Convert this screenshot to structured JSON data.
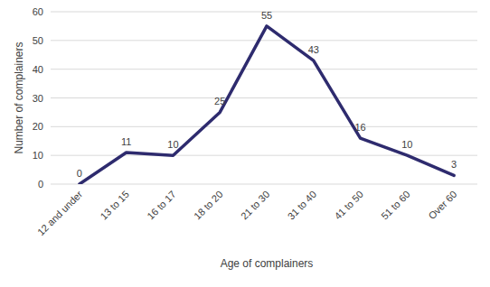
{
  "chart_data": {
    "type": "line",
    "x_label": "Age of complainers",
    "y_label": "Number of complainers",
    "categories": [
      "12 and under",
      "13 to 15",
      "16 to 17",
      "18 to 20",
      "21 to 30",
      "31 to 40",
      "41 to 50",
      "51 to 60",
      "Over 60"
    ],
    "values": [
      0,
      11,
      10,
      25,
      55,
      43,
      16,
      10,
      3
    ],
    "color": "#2e2b6e",
    "ylim": [
      0,
      60
    ],
    "yticks": [
      0,
      10,
      20,
      30,
      40,
      50,
      60
    ],
    "grid": true,
    "data_labels": true
  }
}
